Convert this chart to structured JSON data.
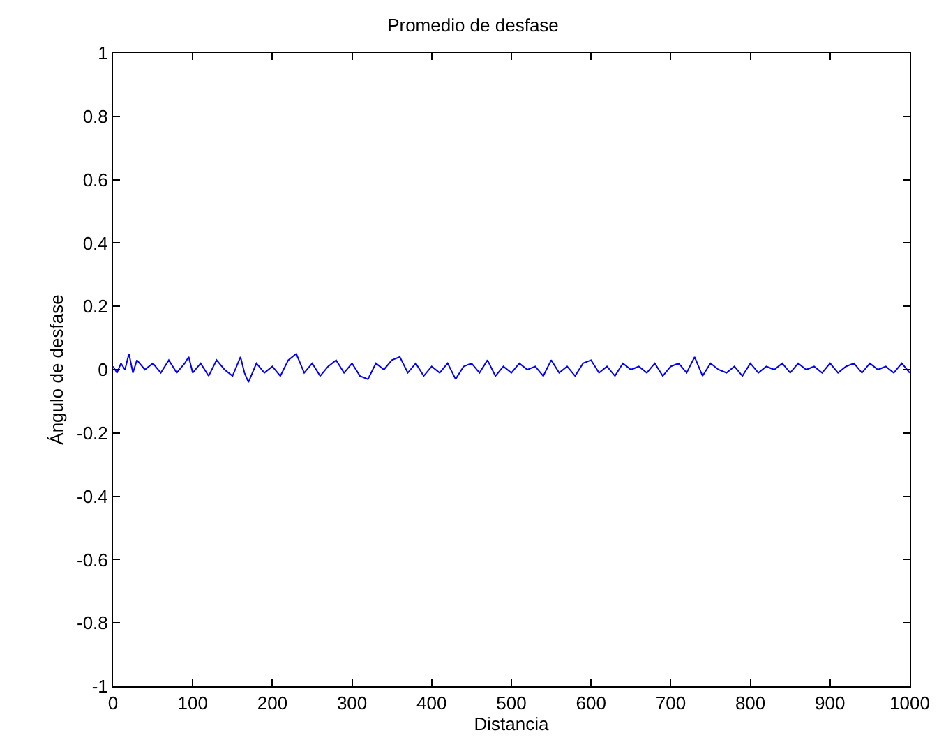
{
  "chart_data": {
    "type": "line",
    "title": "Promedio de desfase",
    "xlabel": "Distancia",
    "ylabel": "Ángulo de desfase",
    "x": [
      0,
      5,
      10,
      15,
      20,
      25,
      30,
      40,
      50,
      60,
      70,
      80,
      90,
      95,
      100,
      110,
      120,
      130,
      140,
      150,
      160,
      165,
      170,
      180,
      190,
      200,
      210,
      220,
      230,
      240,
      250,
      260,
      270,
      280,
      290,
      300,
      310,
      320,
      330,
      340,
      350,
      360,
      370,
      380,
      390,
      400,
      410,
      420,
      430,
      440,
      450,
      460,
      470,
      480,
      490,
      500,
      510,
      520,
      530,
      540,
      550,
      560,
      570,
      580,
      590,
      600,
      610,
      620,
      630,
      640,
      650,
      660,
      670,
      680,
      690,
      700,
      710,
      720,
      730,
      740,
      750,
      760,
      770,
      780,
      790,
      800,
      810,
      820,
      830,
      840,
      850,
      860,
      870,
      880,
      890,
      900,
      910,
      920,
      930,
      940,
      950,
      960,
      970,
      980,
      990,
      1000
    ],
    "series": [
      {
        "color": "#0000ff",
        "values": [
          0.01,
          -0.01,
          0.02,
          0.0,
          0.05,
          -0.01,
          0.03,
          0.0,
          0.02,
          -0.01,
          0.03,
          -0.01,
          0.02,
          0.04,
          -0.01,
          0.02,
          -0.02,
          0.03,
          0.0,
          -0.02,
          0.04,
          -0.01,
          -0.04,
          0.02,
          -0.01,
          0.01,
          -0.02,
          0.03,
          0.05,
          -0.01,
          0.02,
          -0.02,
          0.01,
          0.03,
          -0.01,
          0.02,
          -0.02,
          -0.03,
          0.02,
          0.0,
          0.03,
          0.04,
          -0.01,
          0.02,
          -0.02,
          0.01,
          -0.01,
          0.02,
          -0.03,
          0.01,
          0.02,
          -0.01,
          0.03,
          -0.02,
          0.01,
          -0.01,
          0.02,
          0.0,
          0.01,
          -0.02,
          0.03,
          -0.01,
          0.01,
          -0.02,
          0.02,
          0.03,
          -0.01,
          0.01,
          -0.02,
          0.02,
          0.0,
          0.01,
          -0.01,
          0.02,
          -0.02,
          0.01,
          0.02,
          -0.01,
          0.04,
          -0.02,
          0.02,
          0.0,
          -0.01,
          0.01,
          -0.02,
          0.02,
          -0.01,
          0.01,
          0.0,
          0.02,
          -0.01,
          0.02,
          0.0,
          0.01,
          -0.01,
          0.02,
          -0.01,
          0.01,
          0.02,
          -0.01,
          0.02,
          0.0,
          0.01,
          -0.01,
          0.02,
          -0.01
        ]
      }
    ],
    "xlim": [
      0,
      1000
    ],
    "xticks": [
      0,
      100,
      200,
      300,
      400,
      500,
      600,
      700,
      800,
      900,
      1000
    ],
    "ylim": [
      -1,
      1
    ],
    "yticks": [
      -1,
      -0.8,
      -0.6,
      -0.4,
      -0.2,
      0,
      0.2,
      0.4,
      0.6,
      0.8,
      1
    ],
    "line_style": "solid",
    "marker": "none"
  }
}
